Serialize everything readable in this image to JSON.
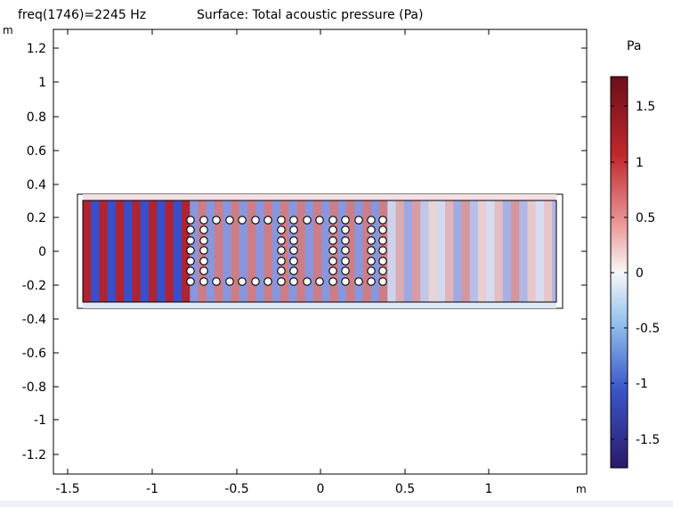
{
  "header": {
    "frequency_label": "freq(1746)=2245 Hz",
    "surface_label": "Surface: Total acoustic pressure (Pa)"
  },
  "axes": {
    "x_unit": "m",
    "y_unit": "m",
    "x_ticks": [
      "-1.5",
      "-1",
      "-0.5",
      "0",
      "0.5",
      "1"
    ],
    "y_ticks": [
      "1.2",
      "1",
      "0.8",
      "0.6",
      "0.4",
      "0.2",
      "0",
      "-0.2",
      "-0.4",
      "-0.6",
      "-0.8",
      "-1",
      "-1.2"
    ],
    "xlim": [
      -1.6,
      1.6
    ],
    "ylim": [
      -1.3,
      1.32
    ]
  },
  "colorbar": {
    "unit": "Pa",
    "ticks": [
      "1.5",
      "1",
      "0.5",
      "0",
      "-0.5",
      "-1",
      "-1.5"
    ],
    "range": [
      -1.75,
      1.75
    ]
  },
  "colors": {
    "high": "#6b0f1a",
    "positive": "#d43a3a",
    "zero": "#f7f7f7",
    "negative": "#3a6fd6",
    "low": "#2b1a6b"
  }
}
